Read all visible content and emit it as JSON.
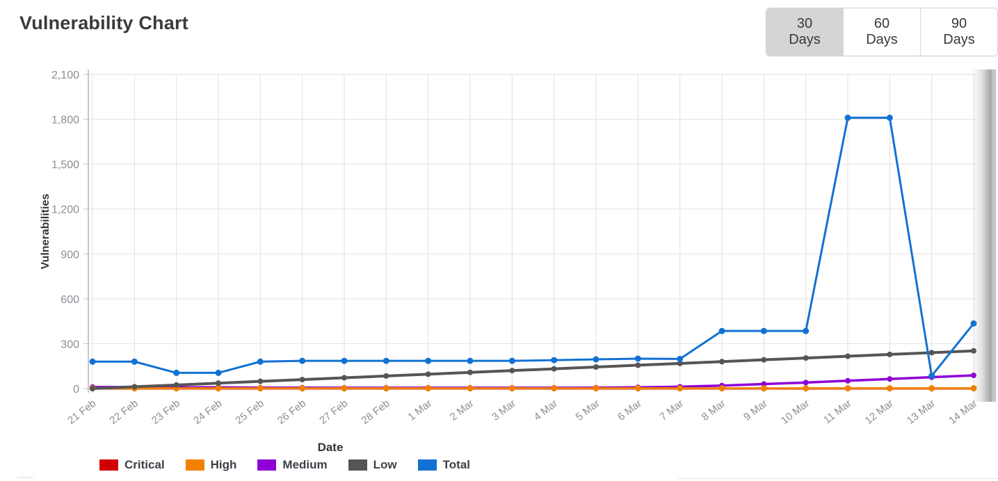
{
  "header": {
    "title": "Vulnerability Chart",
    "range_buttons": [
      {
        "label": "30 Days",
        "selected": true
      },
      {
        "label": "60 Days",
        "selected": false
      },
      {
        "label": "90 Days",
        "selected": false
      }
    ]
  },
  "chart_data": {
    "type": "line",
    "title": "Vulnerability Chart",
    "xlabel": "Date",
    "ylabel": "Vulnerabilities",
    "ylim": [
      0,
      2100
    ],
    "y_ticks": [
      0,
      300,
      600,
      900,
      1200,
      1500,
      1800,
      2100
    ],
    "grid": true,
    "legend_position": "bottom",
    "categories": [
      "21 Feb",
      "22 Feb",
      "23 Feb",
      "24 Feb",
      "25 Feb",
      "26 Feb",
      "27 Feb",
      "28 Feb",
      "1 Mar",
      "2 Mar",
      "3 Mar",
      "4 Mar",
      "5 Mar",
      "6 Mar",
      "7 Mar",
      "8 Mar",
      "9 Mar",
      "10 Mar",
      "11 Mar",
      "12 Mar",
      "13 Mar",
      "14 Mar"
    ],
    "series": [
      {
        "name": "Critical",
        "color": "#d10000",
        "values": [
          0,
          0,
          0,
          0,
          0,
          0,
          0,
          0,
          0,
          0,
          0,
          0,
          0,
          0,
          0,
          0,
          0,
          0,
          0,
          0,
          0,
          0
        ]
      },
      {
        "name": "High",
        "color": "#f18200",
        "values": [
          2,
          2,
          2,
          2,
          2,
          2,
          2,
          2,
          2,
          2,
          2,
          2,
          2,
          2,
          2,
          2,
          2,
          2,
          2,
          2,
          2,
          2
        ]
      },
      {
        "name": "Medium",
        "color": "#8f00d6",
        "values": [
          10,
          10,
          8,
          8,
          6,
          6,
          5,
          5,
          5,
          5,
          5,
          5,
          6,
          8,
          12,
          20,
          30,
          40,
          52,
          64,
          76,
          88
        ]
      },
      {
        "name": "Low",
        "color": "#555555",
        "values": [
          0,
          12,
          24,
          36,
          48,
          60,
          72,
          84,
          96,
          108,
          120,
          132,
          144,
          156,
          168,
          180,
          192,
          204,
          216,
          228,
          240,
          252
        ]
      },
      {
        "name": "Total",
        "color": "#1271d3",
        "values": [
          180,
          180,
          105,
          105,
          180,
          185,
          185,
          185,
          185,
          185,
          185,
          190,
          195,
          200,
          198,
          385,
          385,
          385,
          1810,
          1810,
          85,
          435
        ]
      }
    ]
  },
  "style_colors": {
    "gridline": "#e1e1e1",
    "axis_line": "#c6c6c6",
    "tick_label": "#8b8f95",
    "axis_title": "#333333"
  }
}
